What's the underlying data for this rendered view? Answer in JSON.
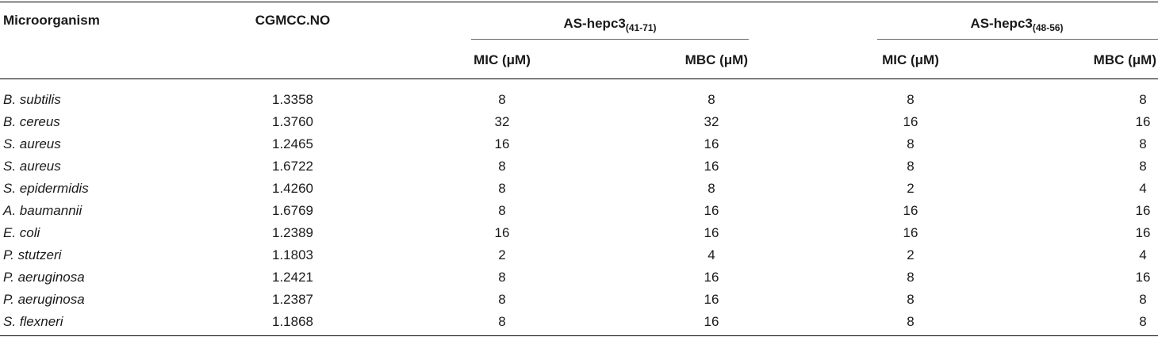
{
  "headers": {
    "microorganism": "Microorganism",
    "cgmcc": "CGMCC.NO",
    "group1": {
      "name": "AS-hepc3",
      "subscript": "(41-71)"
    },
    "group2": {
      "name": "AS-hepc3",
      "subscript": "(48-56)"
    },
    "mic": "MIC (μM)",
    "mbc": "MBC (μM)"
  },
  "rows": [
    {
      "organism": "B. subtilis",
      "cgmcc": "1.3358",
      "mic1": "8",
      "mbc1": "8",
      "mic2": "8",
      "mbc2": "8"
    },
    {
      "organism": "B. cereus",
      "cgmcc": "1.3760",
      "mic1": "32",
      "mbc1": "32",
      "mic2": "16",
      "mbc2": "16"
    },
    {
      "organism": "S. aureus",
      "cgmcc": "1.2465",
      "mic1": "16",
      "mbc1": "16",
      "mic2": "8",
      "mbc2": "8"
    },
    {
      "organism": "S. aureus",
      "cgmcc": "1.6722",
      "mic1": "8",
      "mbc1": "16",
      "mic2": "8",
      "mbc2": "8"
    },
    {
      "organism": "S. epidermidis",
      "cgmcc": "1.4260",
      "mic1": "8",
      "mbc1": "8",
      "mic2": "2",
      "mbc2": "4"
    },
    {
      "organism": "A. baumannii",
      "cgmcc": "1.6769",
      "mic1": "8",
      "mbc1": "16",
      "mic2": "16",
      "mbc2": "16"
    },
    {
      "organism": "E. coli",
      "cgmcc": "1.2389",
      "mic1": "16",
      "mbc1": "16",
      "mic2": "16",
      "mbc2": "16"
    },
    {
      "organism": "P. stutzeri",
      "cgmcc": "1.1803",
      "mic1": "2",
      "mbc1": "4",
      "mic2": "2",
      "mbc2": "4"
    },
    {
      "organism": "P. aeruginosa",
      "cgmcc": "1.2421",
      "mic1": "8",
      "mbc1": "16",
      "mic2": "8",
      "mbc2": "16"
    },
    {
      "organism": "P. aeruginosa",
      "cgmcc": "1.2387",
      "mic1": "8",
      "mbc1": "16",
      "mic2": "8",
      "mbc2": "8"
    },
    {
      "organism": "S. flexneri",
      "cgmcc": "1.1868",
      "mic1": "8",
      "mbc1": "16",
      "mic2": "8",
      "mbc2": "8"
    }
  ]
}
